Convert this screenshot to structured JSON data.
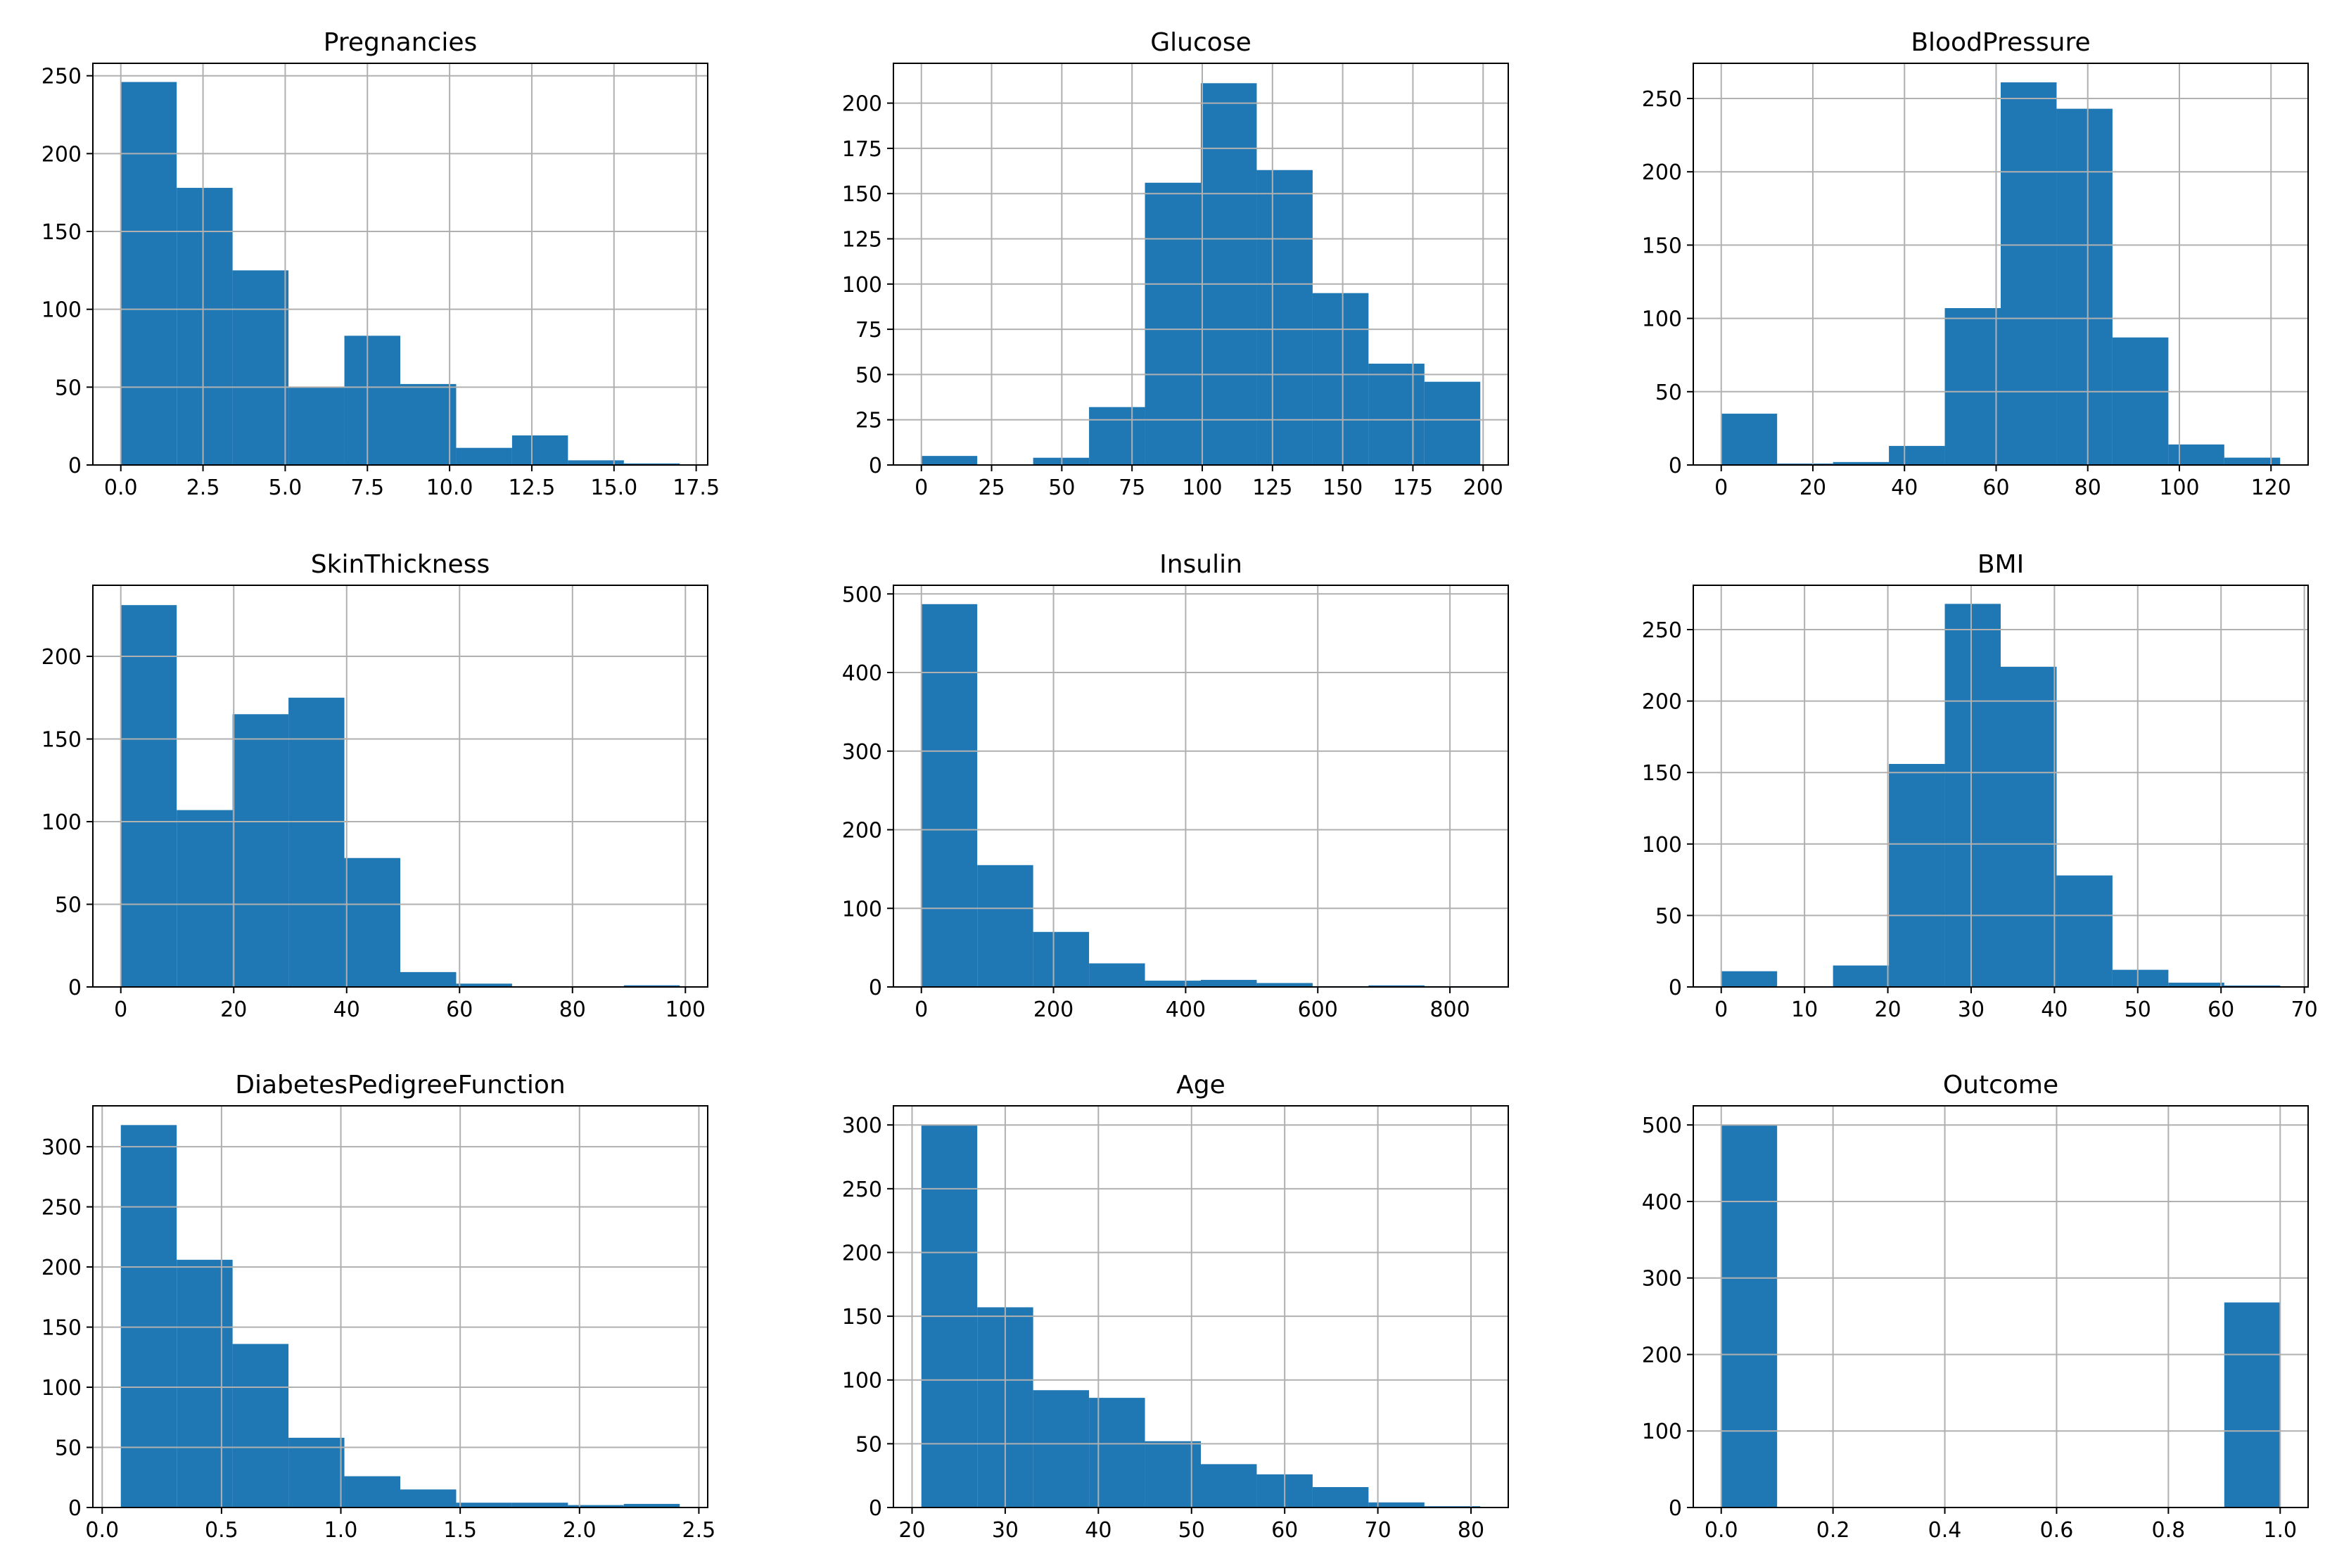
{
  "chart_data": [
    {
      "type": "bar",
      "title": "Pregnancies",
      "bin_edges": [
        0,
        1.7,
        3.4,
        5.1,
        6.8,
        8.5,
        10.2,
        11.9,
        13.6,
        15.3,
        17
      ],
      "values": [
        246,
        178,
        125,
        50,
        83,
        52,
        11,
        19,
        3,
        1
      ],
      "xlim": [
        -0.85,
        17.85
      ],
      "ylim": [
        0,
        258
      ],
      "xticks": [
        0,
        2.5,
        5,
        7.5,
        10,
        12.5,
        15,
        17.5
      ],
      "xtick_labels": [
        "0.0",
        "2.5",
        "5.0",
        "7.5",
        "10.0",
        "12.5",
        "15.0",
        "17.5"
      ],
      "yticks": [
        0,
        50,
        100,
        150,
        200,
        250
      ],
      "ytick_labels": [
        "0",
        "50",
        "100",
        "150",
        "200",
        "250"
      ],
      "color": "#1f77b4",
      "grid": true,
      "xlabel": "",
      "ylabel": ""
    },
    {
      "type": "bar",
      "title": "Glucose",
      "bin_edges": [
        0,
        19.9,
        39.8,
        59.7,
        79.6,
        99.5,
        119.4,
        139.3,
        159.2,
        179.1,
        199
      ],
      "values": [
        5,
        0,
        4,
        32,
        156,
        211,
        163,
        95,
        56,
        46
      ],
      "xlim": [
        -9.95,
        208.95
      ],
      "ylim": [
        0,
        222
      ],
      "xticks": [
        0,
        25,
        50,
        75,
        100,
        125,
        150,
        175,
        200
      ],
      "xtick_labels": [
        "0",
        "25",
        "50",
        "75",
        "100",
        "125",
        "150",
        "175",
        "200"
      ],
      "yticks": [
        0,
        25,
        50,
        75,
        100,
        125,
        150,
        175,
        200
      ],
      "ytick_labels": [
        "0",
        "25",
        "50",
        "75",
        "100",
        "125",
        "150",
        "175",
        "200"
      ],
      "color": "#1f77b4",
      "grid": true,
      "xlabel": "",
      "ylabel": ""
    },
    {
      "type": "bar",
      "title": "BloodPressure",
      "bin_edges": [
        0,
        12.2,
        24.4,
        36.6,
        48.8,
        61,
        73.2,
        85.4,
        97.6,
        109.8,
        122
      ],
      "values": [
        35,
        1,
        2,
        13,
        107,
        261,
        243,
        87,
        14,
        5
      ],
      "xlim": [
        -6.1,
        128.1
      ],
      "ylim": [
        0,
        274
      ],
      "xticks": [
        0,
        20,
        40,
        60,
        80,
        100,
        120
      ],
      "xtick_labels": [
        "0",
        "20",
        "40",
        "60",
        "80",
        "100",
        "120"
      ],
      "yticks": [
        0,
        50,
        100,
        150,
        200,
        250
      ],
      "ytick_labels": [
        "0",
        "50",
        "100",
        "150",
        "200",
        "250"
      ],
      "color": "#1f77b4",
      "grid": true,
      "xlabel": "",
      "ylabel": ""
    },
    {
      "type": "bar",
      "title": "SkinThickness",
      "bin_edges": [
        0,
        9.9,
        19.8,
        29.7,
        39.6,
        49.5,
        59.4,
        69.3,
        79.2,
        89.1,
        99
      ],
      "values": [
        231,
        107,
        165,
        175,
        78,
        9,
        2,
        0,
        0,
        1
      ],
      "xlim": [
        -4.95,
        103.95
      ],
      "ylim": [
        0,
        243
      ],
      "xticks": [
        0,
        20,
        40,
        60,
        80,
        100
      ],
      "xtick_labels": [
        "0",
        "20",
        "40",
        "60",
        "80",
        "100"
      ],
      "yticks": [
        0,
        50,
        100,
        150,
        200
      ],
      "ytick_labels": [
        "0",
        "50",
        "100",
        "150",
        "200"
      ],
      "color": "#1f77b4",
      "grid": true,
      "xlabel": "",
      "ylabel": ""
    },
    {
      "type": "bar",
      "title": "Insulin",
      "bin_edges": [
        0,
        84.6,
        169.2,
        253.8,
        338.4,
        423,
        507.6,
        592.2,
        676.8,
        761.4,
        846
      ],
      "values": [
        487,
        155,
        70,
        30,
        8,
        9,
        5,
        1,
        2,
        1
      ],
      "xlim": [
        -42.3,
        888.3
      ],
      "ylim": [
        0,
        511
      ],
      "xticks": [
        0,
        200,
        400,
        600,
        800
      ],
      "xtick_labels": [
        "0",
        "200",
        "400",
        "600",
        "800"
      ],
      "yticks": [
        0,
        100,
        200,
        300,
        400,
        500
      ],
      "ytick_labels": [
        "0",
        "100",
        "200",
        "300",
        "400",
        "500"
      ],
      "color": "#1f77b4",
      "grid": true,
      "xlabel": "",
      "ylabel": ""
    },
    {
      "type": "bar",
      "title": "BMI",
      "bin_edges": [
        0,
        6.71,
        13.42,
        20.13,
        26.84,
        33.55,
        40.26,
        46.97,
        53.68,
        60.39,
        67.1
      ],
      "values": [
        11,
        0,
        15,
        156,
        268,
        224,
        78,
        12,
        3,
        1
      ],
      "xlim": [
        -3.355,
        70.455
      ],
      "ylim": [
        0,
        281
      ],
      "xticks": [
        0,
        10,
        20,
        30,
        40,
        50,
        60,
        70
      ],
      "xtick_labels": [
        "0",
        "10",
        "20",
        "30",
        "40",
        "50",
        "60",
        "70"
      ],
      "yticks": [
        0,
        50,
        100,
        150,
        200,
        250
      ],
      "ytick_labels": [
        "0",
        "50",
        "100",
        "150",
        "200",
        "250"
      ],
      "color": "#1f77b4",
      "grid": true,
      "xlabel": "",
      "ylabel": ""
    },
    {
      "type": "bar",
      "title": "DiabetesPedigreeFunction",
      "bin_edges": [
        0.078,
        0.3122,
        0.5464,
        0.7806,
        1.0148,
        1.249,
        1.4832,
        1.7174,
        1.9516,
        2.1858,
        2.42
      ],
      "values": [
        318,
        206,
        136,
        58,
        26,
        15,
        4,
        4,
        2,
        3
      ],
      "xlim": [
        -0.0391,
        2.5371
      ],
      "ylim": [
        0,
        334
      ],
      "xticks": [
        0,
        0.5,
        1,
        1.5,
        2,
        2.5
      ],
      "xtick_labels": [
        "0.0",
        "0.5",
        "1.0",
        "1.5",
        "2.0",
        "2.5"
      ],
      "yticks": [
        0,
        50,
        100,
        150,
        200,
        250,
        300
      ],
      "ytick_labels": [
        "0",
        "50",
        "100",
        "150",
        "200",
        "250",
        "300"
      ],
      "color": "#1f77b4",
      "grid": true,
      "xlabel": "",
      "ylabel": ""
    },
    {
      "type": "bar",
      "title": "Age",
      "bin_edges": [
        21,
        27,
        33,
        39,
        45,
        51,
        57,
        63,
        69,
        75,
        81
      ],
      "values": [
        300,
        157,
        92,
        86,
        52,
        34,
        26,
        16,
        4,
        1
      ],
      "xlim": [
        18,
        84
      ],
      "ylim": [
        0,
        315
      ],
      "xticks": [
        20,
        30,
        40,
        50,
        60,
        70,
        80
      ],
      "xtick_labels": [
        "20",
        "30",
        "40",
        "50",
        "60",
        "70",
        "80"
      ],
      "yticks": [
        0,
        50,
        100,
        150,
        200,
        250,
        300
      ],
      "ytick_labels": [
        "0",
        "50",
        "100",
        "150",
        "200",
        "250",
        "300"
      ],
      "color": "#1f77b4",
      "grid": true,
      "xlabel": "",
      "ylabel": ""
    },
    {
      "type": "bar",
      "title": "Outcome",
      "bin_edges": [
        0,
        0.1,
        0.2,
        0.3,
        0.4,
        0.5,
        0.6,
        0.7,
        0.8,
        0.9,
        1
      ],
      "values": [
        500,
        0,
        0,
        0,
        0,
        0,
        0,
        0,
        0,
        268
      ],
      "xlim": [
        -0.05,
        1.05
      ],
      "ylim": [
        0,
        525
      ],
      "xticks": [
        0,
        0.2,
        0.4,
        0.6,
        0.8,
        1
      ],
      "xtick_labels": [
        "0.0",
        "0.2",
        "0.4",
        "0.6",
        "0.8",
        "1.0"
      ],
      "yticks": [
        0,
        100,
        200,
        300,
        400,
        500
      ],
      "ytick_labels": [
        "0",
        "100",
        "200",
        "300",
        "400",
        "500"
      ],
      "color": "#1f77b4",
      "grid": true,
      "xlabel": "",
      "ylabel": ""
    }
  ]
}
